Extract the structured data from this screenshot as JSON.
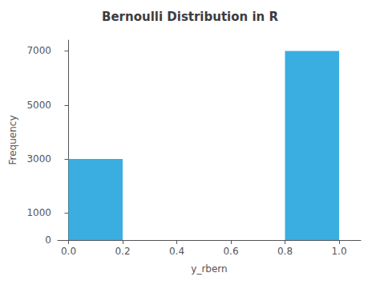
{
  "chart_data": {
    "type": "bar",
    "title": "Bernoulli Distribution in R",
    "xlabel": "y_rbern",
    "ylabel": "Frequency",
    "x": [
      0.0,
      0.8
    ],
    "bar_width": 0.2,
    "values": [
      3000,
      7000
    ],
    "color": "#3aaee0",
    "xlim": [
      -0.04,
      1.08
    ],
    "xticks": [
      {
        "value": 0.0,
        "label": "0.0"
      },
      {
        "value": 0.2,
        "label": "0.2"
      },
      {
        "value": 0.4,
        "label": "0.4"
      },
      {
        "value": 0.6,
        "label": "0.6"
      },
      {
        "value": 0.8,
        "label": "0.8"
      },
      {
        "value": 1.0,
        "label": "1.0"
      }
    ],
    "ylim": [
      0,
      7400
    ],
    "yticks": [
      0,
      1000,
      3000,
      5000,
      7000
    ],
    "grid": false
  }
}
